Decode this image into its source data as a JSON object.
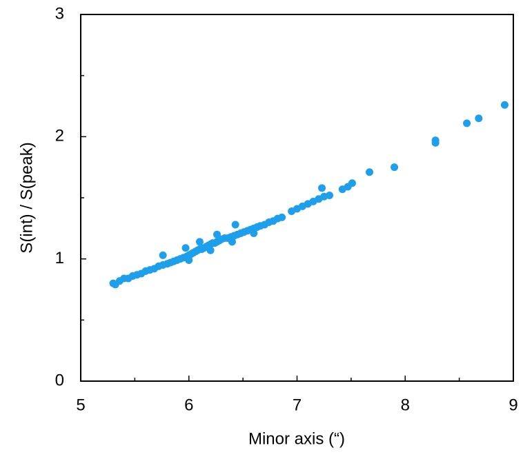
{
  "chart_data": {
    "type": "scatter",
    "xlabel": "Minor axis (“)",
    "ylabel": "S(int) / S(peak)",
    "xlim": [
      5,
      9
    ],
    "ylim": [
      0,
      3
    ],
    "xticks": [
      5,
      6,
      7,
      8,
      9
    ],
    "yticks": [
      0,
      1,
      2,
      3
    ],
    "xminorticks": [
      5.5,
      6.5,
      7.5,
      8.5
    ],
    "yminorticks": [
      0.5,
      1.5,
      2.5
    ],
    "series": [
      {
        "color": "#1e9fec",
        "x": [
          5.3,
          5.32,
          5.36,
          5.4,
          5.44,
          5.48,
          5.52,
          5.56,
          5.6,
          5.64,
          5.68,
          5.72,
          5.76,
          5.76,
          5.8,
          5.83,
          5.86,
          5.89,
          5.92,
          5.95,
          5.97,
          5.98,
          6.0,
          6.0,
          6.02,
          6.04,
          6.06,
          6.08,
          6.1,
          6.1,
          6.12,
          6.14,
          6.16,
          6.18,
          6.2,
          6.2,
          6.22,
          6.24,
          6.26,
          6.26,
          6.28,
          6.3,
          6.33,
          6.36,
          6.39,
          6.4,
          6.43,
          6.42,
          6.45,
          6.48,
          6.51,
          6.54,
          6.57,
          6.6,
          6.6,
          6.63,
          6.66,
          6.7,
          6.74,
          6.78,
          6.82,
          6.86,
          6.95,
          7.0,
          7.05,
          7.1,
          7.15,
          7.2,
          7.23,
          7.25,
          7.3,
          7.42,
          7.47,
          7.51,
          7.67,
          7.9,
          8.28,
          8.28,
          8.57,
          8.68,
          8.92
        ],
        "values": [
          0.8,
          0.79,
          0.82,
          0.84,
          0.84,
          0.86,
          0.87,
          0.88,
          0.9,
          0.91,
          0.92,
          0.94,
          1.03,
          0.95,
          0.96,
          0.97,
          0.98,
          0.99,
          1.0,
          1.01,
          1.09,
          1.02,
          1.03,
          0.99,
          1.04,
          1.05,
          1.06,
          1.07,
          1.14,
          1.08,
          1.08,
          1.09,
          1.1,
          1.11,
          1.12,
          1.07,
          1.13,
          1.13,
          1.2,
          1.14,
          1.15,
          1.16,
          1.17,
          1.17,
          1.18,
          1.14,
          1.28,
          1.19,
          1.2,
          1.21,
          1.22,
          1.23,
          1.24,
          1.25,
          1.21,
          1.26,
          1.27,
          1.28,
          1.3,
          1.31,
          1.33,
          1.34,
          1.39,
          1.41,
          1.43,
          1.45,
          1.47,
          1.49,
          1.58,
          1.51,
          1.52,
          1.57,
          1.59,
          1.62,
          1.71,
          1.75,
          1.97,
          1.95,
          2.11,
          2.15,
          2.26
        ]
      }
    ]
  }
}
